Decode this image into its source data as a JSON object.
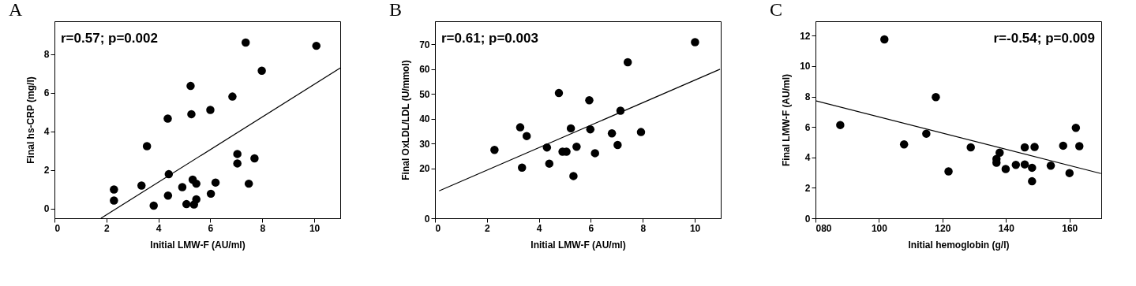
{
  "chart_data": [
    {
      "type": "scatter",
      "title": "A",
      "xlabel": "Initial LMW-F (AU/ml)",
      "ylabel": "Final hs-CRP (mg/l)",
      "annotations": [
        "r=0.57; p=0.002"
      ],
      "xlim": [
        0,
        11
      ],
      "xticks": [
        0,
        2,
        4,
        6,
        8,
        10
      ],
      "ylim": [
        -0.5,
        9.7
      ],
      "yticks": [
        0,
        2,
        4,
        6,
        8
      ],
      "series": [
        {
          "type": "scatter",
          "marker": "circle",
          "color": "#000000",
          "x": [
            2.29,
            2.29,
            3.35,
            3.56,
            3.82,
            4.36,
            4.4,
            4.37,
            4.92,
            5.08,
            5.24,
            5.27,
            5.32,
            5.46,
            5.46,
            5.37,
            6.0,
            6.02,
            6.2,
            6.85,
            7.04,
            7.04,
            7.36,
            7.48,
            7.7,
            7.98,
            10.08
          ],
          "values": [
            0.99,
            0.42,
            1.19,
            3.23,
            0.15,
            4.66,
            1.78,
            0.67,
            1.11,
            0.23,
            6.35,
            4.89,
            1.5,
            1.29,
            0.48,
            0.21,
            5.11,
            0.77,
            1.35,
            5.8,
            2.83,
            2.34,
            8.6,
            1.29,
            2.6,
            7.14,
            8.43
          ]
        },
        {
          "type": "line",
          "color": "#000000",
          "x": [
            1.79,
            11
          ],
          "values": [
            -0.5,
            7.28
          ]
        }
      ]
    },
    {
      "type": "scatter",
      "title": "B",
      "xlabel": "Initial LMW-F (AU/ml)",
      "ylabel": "Final OxLDL/LDL (U/mmol)",
      "annotations": [
        "r=0.61; p=0.003"
      ],
      "xlim": [
        0,
        11
      ],
      "xticks": [
        0,
        2,
        4,
        6,
        8,
        10
      ],
      "ylim": [
        0,
        79.3
      ],
      "yticks": [
        0,
        20,
        30,
        40,
        50,
        60,
        70
      ],
      "series": [
        {
          "type": "scatter",
          "marker": "circle",
          "color": "#000000",
          "x": [
            2.29,
            3.28,
            3.35,
            3.53,
            4.31,
            4.4,
            4.77,
            4.91,
            5.06,
            5.23,
            5.33,
            5.45,
            5.94,
            5.98,
            6.16,
            6.81,
            7.03,
            7.14,
            7.42,
            7.93,
            10.01
          ],
          "values": [
            27.5,
            36.6,
            20.4,
            33.1,
            28.5,
            22.0,
            50.4,
            26.8,
            26.8,
            36.2,
            17.0,
            28.8,
            47.5,
            35.8,
            26.2,
            34.2,
            29.5,
            43.3,
            62.8,
            34.7,
            70.9
          ]
        },
        {
          "type": "line",
          "color": "#000000",
          "x": [
            0.16,
            10.97
          ],
          "values": [
            11.0,
            60.0
          ]
        }
      ]
    },
    {
      "type": "scatter",
      "title": "C",
      "xlabel": "Initial hemoglobin (g/l)",
      "ylabel": "Final LMW-F (AU/ml)",
      "annotations": [
        "r=-0.54; p=0.009"
      ],
      "xlim": [
        80,
        170
      ],
      "xticks": [
        {
          "value": 80,
          "label": "080"
        },
        100,
        120,
        140,
        160
      ],
      "ylim": [
        0,
        12.95
      ],
      "yticks": [
        0,
        2,
        4,
        6,
        8,
        10,
        12
      ],
      "series": [
        {
          "type": "scatter",
          "marker": "circle",
          "color": "#000000",
          "x": [
            87.8,
            101.7,
            107.9,
            114.9,
            117.9,
            121.9,
            128.9,
            138.0,
            137.0,
            137.0,
            139.9,
            143.1,
            145.9,
            145.9,
            148.2,
            148.2,
            149.0,
            154.1,
            158.0,
            160.0,
            162.0,
            163.1
          ],
          "values": [
            6.13,
            11.76,
            4.86,
            5.56,
            7.96,
            3.08,
            4.66,
            4.31,
            3.9,
            3.65,
            3.24,
            3.51,
            4.66,
            3.54,
            3.32,
            2.43,
            4.69,
            3.46,
            4.77,
            2.97,
            5.94,
            4.74
          ]
        },
        {
          "type": "line",
          "color": "#000000",
          "x": [
            80,
            169.9
          ],
          "values": [
            7.73,
            2.94
          ]
        }
      ]
    }
  ]
}
